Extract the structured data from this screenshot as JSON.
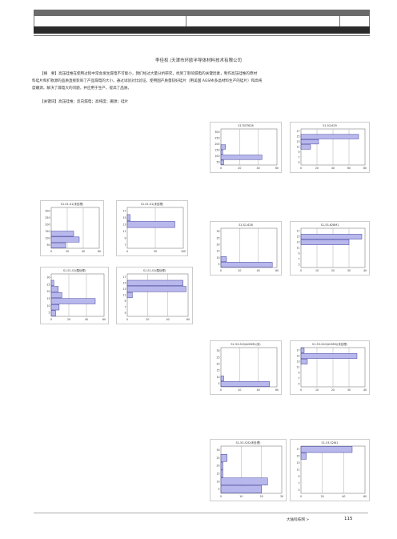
{
  "header": {},
  "article": {
    "author": "李佳权 /天津市环欧半导体材料技术有限公司",
    "abstract_lines": [
      "【摘　要】高压硅堆在使用过程中常会发生漏电不可能小，我们经过大量分析研究，找到了影响漏电的关键因素，制作高压硅堆的原材",
      "料硅片和扩散源的品质直接影响了产品漏电的大小。通过试验对比验证，使用国产质量较好硅片（用美国 AGSMI多晶材料生产的硅片）和高纯",
      "度硼源，解决了漏电大的问题，并应用于生产，提高了品质。"
    ],
    "keywords": "【关键词】高压硅堆；反向漏电；高纯度；硼源；硅片"
  },
  "charts": [
    {
      "title": "S1705T628",
      "yticks": [
        "300",
        "250",
        "200",
        "150",
        "100",
        "50"
      ],
      "xticks": [
        "0",
        "20",
        "40",
        "60"
      ],
      "xmax": 60,
      "values": [
        0,
        0,
        0,
        5,
        2,
        44,
        3
      ]
    },
    {
      "title": "S1-53-629",
      "yticks": [
        "17",
        "15",
        "13",
        "11",
        "9",
        "7",
        "5"
      ],
      "xticks": [
        "0",
        "20",
        "40",
        "60",
        "80"
      ],
      "xmax": 80,
      "values": [
        0,
        72,
        22,
        12,
        0,
        0,
        0
      ]
    },
    {
      "title": "S1-S1-S1(未处理)",
      "yticks": [
        "300",
        "250",
        "200",
        "150",
        "100",
        "50"
      ],
      "xticks": [
        "0",
        "20",
        "40",
        "60"
      ],
      "xmax": 60,
      "values": [
        0,
        0,
        0,
        0,
        28,
        35,
        18
      ]
    },
    {
      "title": "S1-S1-S1(未处理)",
      "yticks": [
        "17",
        "15",
        "13",
        "11",
        "9",
        "7"
      ],
      "xticks": [
        "0",
        "50",
        "100"
      ],
      "xmax": 100,
      "values": [
        0,
        5,
        85,
        0,
        0,
        0
      ]
    },
    {
      "title": "S1-S1-S1(酸处理)",
      "yticks": [
        "30",
        "25",
        "20",
        "15",
        "10",
        "5"
      ],
      "xticks": [
        "0",
        "20",
        "40",
        "60"
      ],
      "xmax": 60,
      "values": [
        0,
        3,
        8,
        12,
        50,
        9,
        5
      ]
    },
    {
      "title": "S1-S1-S1(酸处理)",
      "yticks": [
        "17",
        "15",
        "13",
        "11",
        "9",
        "7",
        "5"
      ],
      "xticks": [
        "0",
        "20",
        "40",
        "60"
      ],
      "xmax": 60,
      "values": [
        0,
        55,
        58,
        5,
        0,
        0,
        0
      ]
    },
    {
      "title": "S1-S1-628",
      "yticks": [
        "30",
        "25",
        "20",
        "15",
        "10",
        "5"
      ],
      "xticks": [
        "0",
        "20",
        "40",
        "60"
      ],
      "xmax": 60,
      "values": [
        0,
        0,
        0,
        0,
        0,
        6,
        55
      ]
    },
    {
      "title": "S1-53-628M1",
      "yticks": [
        "17",
        "15",
        "13",
        "11",
        "9",
        "7",
        "5"
      ],
      "xticks": [
        "0",
        "10",
        "20",
        "30",
        "40"
      ],
      "xmax": 40,
      "values": [
        0,
        38,
        30,
        0,
        0,
        0,
        0
      ]
    },
    {
      "title": "S1-53-S10(AGSMI)(未)",
      "yticks": [
        "30",
        "25",
        "20",
        "15",
        "10",
        "5"
      ],
      "xticks": [
        "0",
        "20",
        "40",
        "60"
      ],
      "xmax": 60,
      "values": [
        0,
        0,
        0,
        0,
        0,
        3,
        52
      ]
    },
    {
      "title": "S1-53-S10(AGSMI)(未处理)",
      "yticks": [
        "17",
        "15",
        "13",
        "11",
        "9",
        "7",
        "5"
      ],
      "xticks": [
        "0",
        "10",
        "20",
        "30",
        "40"
      ],
      "xmax": 40,
      "values": [
        2,
        35,
        4,
        0,
        0,
        0,
        0
      ]
    },
    {
      "title": "S1-53-S2D(未处理)",
      "yticks": [
        "30",
        "25",
        "20",
        "15",
        "10",
        "5"
      ],
      "xticks": [
        "0",
        "10",
        "20",
        "30"
      ],
      "xmax": 30,
      "values": [
        0,
        3,
        1,
        1,
        23,
        20
      ]
    },
    {
      "title": "S1-53-S2W1",
      "yticks": [
        "17",
        "15",
        "13",
        "11",
        "9",
        "7",
        "5"
      ],
      "xticks": [
        "0",
        "20",
        "40",
        "60"
      ],
      "xmax": 60,
      "values": [
        48,
        5,
        0,
        0,
        0,
        0,
        0
      ]
    }
  ],
  "footer": {
    "journal": "大陆科技网 >",
    "page_number": "115"
  },
  "colors": {
    "bar_fill": "#b8b8ec",
    "bar_stroke": "#1a1a8a"
  }
}
